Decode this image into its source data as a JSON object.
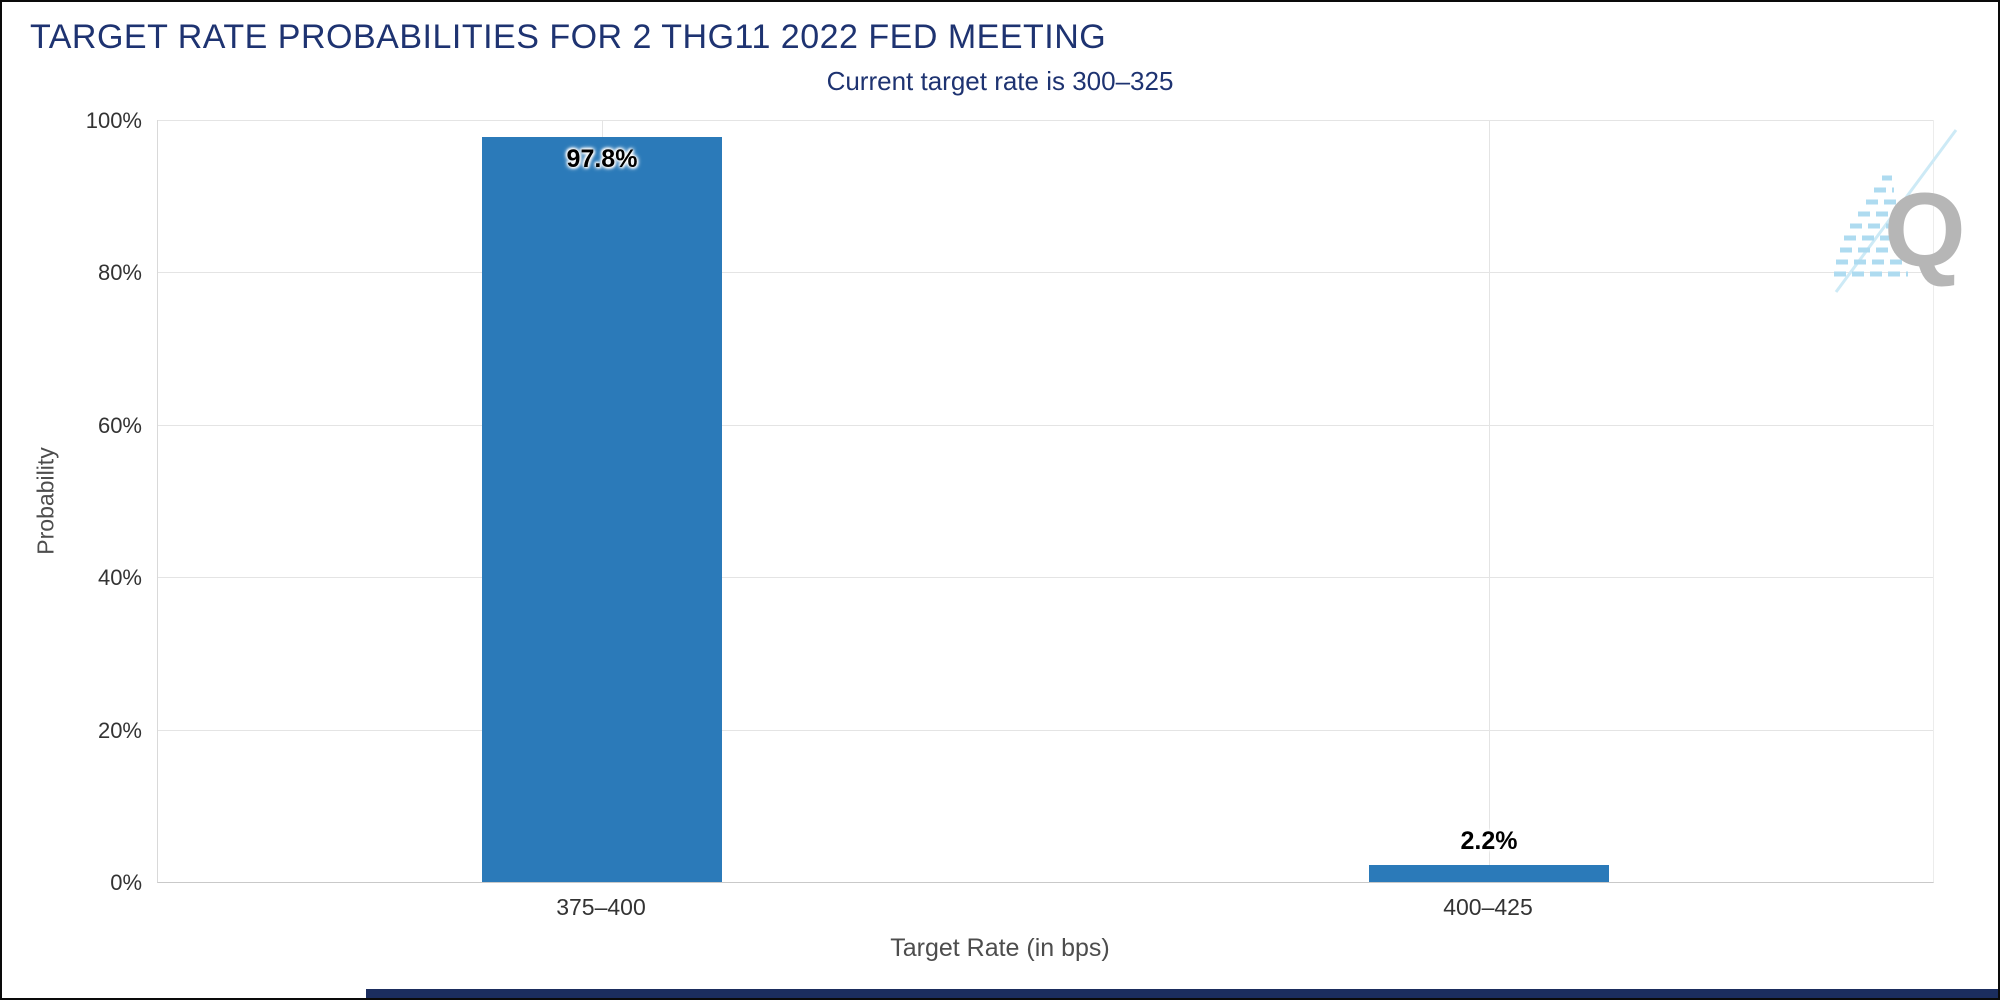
{
  "watermark": {
    "letter": "Q"
  },
  "chart_data": {
    "type": "bar",
    "title": "TARGET RATE PROBABILITIES FOR 2 THG11 2022 FED MEETING",
    "subtitle": "Current target rate is 300–325",
    "categories": [
      "375–400",
      "400–425"
    ],
    "values": [
      97.8,
      2.2
    ],
    "value_labels": [
      "97.8%",
      "2.2%"
    ],
    "xlabel": "Target Rate (in bps)",
    "ylabel": "Probability",
    "ylim": [
      0,
      100
    ],
    "ytick_values": [
      0,
      20,
      40,
      60,
      80,
      100
    ],
    "yticks": [
      "0%",
      "20%",
      "40%",
      "60%",
      "80%",
      "100%"
    ],
    "grid": true,
    "legend": "none",
    "bar_color": "#2b7ab9",
    "title_color": "#1e3371",
    "subtitle_color": "#1e3371"
  }
}
